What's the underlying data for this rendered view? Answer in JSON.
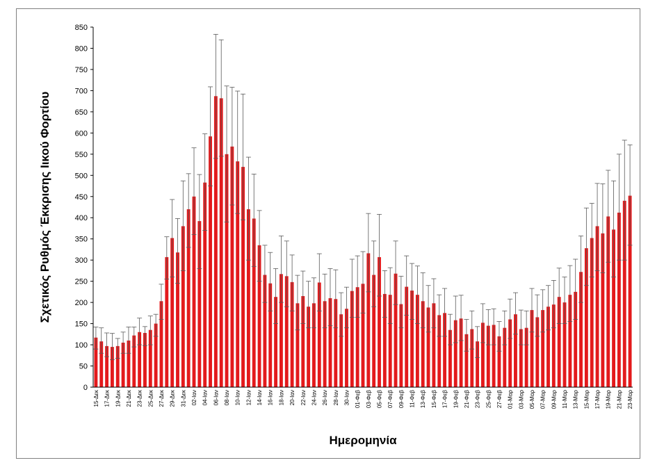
{
  "chart_data": {
    "type": "bar",
    "title": "",
    "xlabel": "Ημερομηνία",
    "ylabel": "Σχετικός Ρυθμός Έκκρισης Ιικού Φορτίου",
    "ylim": [
      0,
      850
    ],
    "yticks": [
      0,
      50,
      100,
      150,
      200,
      250,
      300,
      350,
      400,
      450,
      500,
      550,
      600,
      650,
      700,
      750,
      800,
      850
    ],
    "grid": false,
    "legend": "none",
    "bar_color": "#e31a1c",
    "error_color": "#595959",
    "categories": [
      "15-Δεκ",
      "16-Δεκ",
      "17-Δεκ",
      "18-Δεκ",
      "19-Δεκ",
      "20-Δεκ",
      "21-Δεκ",
      "22-Δεκ",
      "23-Δεκ",
      "24-Δεκ",
      "25-Δεκ",
      "26-Δεκ",
      "27-Δεκ",
      "28-Δεκ",
      "29-Δεκ",
      "30-Δεκ",
      "31-Δεκ",
      "01-Ιαν",
      "02-Ιαν",
      "03-Ιαν",
      "04-Ιαν",
      "05-Ιαν",
      "06-Ιαν",
      "07-Ιαν",
      "08-Ιαν",
      "09-Ιαν",
      "10-Ιαν",
      "11-Ιαν",
      "12-Ιαν",
      "13-Ιαν",
      "14-Ιαν",
      "15-Ιαν",
      "16-Ιαν",
      "17-Ιαν",
      "18-Ιαν",
      "19-Ιαν",
      "20-Ιαν",
      "21-Ιαν",
      "22-Ιαν",
      "23-Ιαν",
      "24-Ιαν",
      "25-Ιαν",
      "26-Ιαν",
      "27-Ιαν",
      "28-Ιαν",
      "29-Ιαν",
      "30-Ιαν",
      "31-Ιαν",
      "01-Φεβ",
      "02-Φεβ",
      "03-Φεβ",
      "04-Φεβ",
      "05-Φεβ",
      "06-Φεβ",
      "07-Φεβ",
      "08-Φεβ",
      "09-Φεβ",
      "10-Φεβ",
      "11-Φεβ",
      "12-Φεβ",
      "13-Φεβ",
      "14-Φεβ",
      "15-Φεβ",
      "16-Φεβ",
      "17-Φεβ",
      "18-Φεβ",
      "19-Φεβ",
      "20-Φεβ",
      "21-Φεβ",
      "22-Φεβ",
      "23-Φεβ",
      "24-Φεβ",
      "25-Φεβ",
      "26-Φεβ",
      "27-Φεβ",
      "28-Φεβ",
      "01-Μαρ",
      "02-Μαρ",
      "03-Μαρ",
      "04-Μαρ",
      "05-Μαρ",
      "06-Μαρ",
      "07-Μαρ",
      "08-Μαρ",
      "09-Μαρ",
      "10-Μαρ",
      "11-Μαρ",
      "12-Μαρ",
      "13-Μαρ",
      "14-Μαρ",
      "15-Μαρ",
      "16-Μαρ",
      "17-Μαρ",
      "18-Μαρ",
      "19-Μαρ",
      "20-Μαρ",
      "21-Μαρ",
      "22-Μαρ",
      "23-Μαρ"
    ],
    "xtick_labels": [
      "15-Δεκ",
      "17-Δεκ",
      "19-Δεκ",
      "21-Δεκ",
      "23-Δεκ",
      "25-Δεκ",
      "27-Δεκ",
      "29-Δεκ",
      "31-Δεκ",
      "02-Ιαν",
      "04-Ιαν",
      "06-Ιαν",
      "08-Ιαν",
      "10-Ιαν",
      "12-Ιαν",
      "14-Ιαν",
      "16-Ιαν",
      "18-Ιαν",
      "20-Ιαν",
      "22-Ιαν",
      "24-Ιαν",
      "26-Ιαν",
      "28-Ιαν",
      "30-Ιαν",
      "01-Φεβ",
      "03-Φεβ",
      "05-Φεβ",
      "07-Φεβ",
      "09-Φεβ",
      "11-Φεβ",
      "13-Φεβ",
      "15-Φεβ",
      "17-Φεβ",
      "19-Φεβ",
      "21-Φεβ",
      "23-Φεβ",
      "25-Φεβ",
      "27-Φεβ",
      "01-Μαρ",
      "03-Μαρ",
      "05-Μαρ",
      "07-Μαρ",
      "09-Μαρ",
      "11-Μαρ",
      "13-Μαρ",
      "15-Μαρ",
      "17-Μαρ",
      "19-Μαρ",
      "21-Μαρ",
      "23-Μαρ"
    ],
    "values": [
      117,
      108,
      97,
      95,
      97,
      105,
      110,
      122,
      130,
      128,
      135,
      150,
      203,
      307,
      352,
      318,
      380,
      420,
      450,
      392,
      483,
      592,
      687,
      682,
      550,
      568,
      533,
      520,
      420,
      398,
      335,
      265,
      245,
      213,
      267,
      262,
      248,
      198,
      215,
      190,
      198,
      247,
      203,
      210,
      208,
      172,
      185,
      227,
      236,
      244,
      316,
      265,
      307,
      220,
      218,
      268,
      196,
      237,
      228,
      218,
      203,
      188,
      198,
      170,
      175,
      135,
      158,
      162,
      125,
      137,
      108,
      152,
      145,
      147,
      120,
      140,
      160,
      172,
      137,
      140,
      182,
      165,
      182,
      190,
      195,
      213,
      200,
      218,
      225,
      272,
      328,
      352,
      380,
      363,
      403,
      372,
      412,
      440,
      452
    ],
    "err_low": [
      90,
      80,
      72,
      65,
      68,
      80,
      80,
      95,
      100,
      98,
      100,
      120,
      160,
      255,
      260,
      245,
      275,
      330,
      360,
      280,
      370,
      475,
      540,
      545,
      390,
      430,
      410,
      395,
      300,
      285,
      250,
      200,
      180,
      150,
      200,
      190,
      180,
      135,
      150,
      140,
      140,
      180,
      140,
      145,
      140,
      120,
      140,
      165,
      165,
      175,
      225,
      190,
      215,
      165,
      150,
      195,
      140,
      170,
      160,
      150,
      140,
      130,
      140,
      120,
      120,
      100,
      105,
      110,
      85,
      90,
      70,
      105,
      100,
      100,
      85,
      100,
      115,
      125,
      100,
      100,
      130,
      120,
      130,
      135,
      140,
      150,
      150,
      155,
      160,
      200,
      240,
      260,
      275,
      270,
      295,
      260,
      300,
      300,
      335
    ],
    "err_high": [
      142,
      140,
      128,
      127,
      115,
      130,
      142,
      142,
      163,
      143,
      168,
      172,
      243,
      355,
      443,
      398,
      487,
      504,
      565,
      502,
      598,
      709,
      833,
      820,
      711,
      708,
      699,
      692,
      543,
      503,
      417,
      335,
      318,
      280,
      357,
      345,
      312,
      264,
      274,
      250,
      258,
      315,
      267,
      280,
      277,
      223,
      236,
      302,
      310,
      320,
      410,
      345,
      408,
      275,
      282,
      345,
      262,
      310,
      292,
      286,
      270,
      240,
      256,
      218,
      233,
      172,
      215,
      217,
      160,
      180,
      143,
      197,
      183,
      185,
      155,
      180,
      208,
      223,
      182,
      180,
      233,
      218,
      230,
      240,
      252,
      281,
      260,
      287,
      302,
      357,
      423,
      434,
      481,
      480,
      512,
      487,
      550,
      583,
      572
    ]
  }
}
